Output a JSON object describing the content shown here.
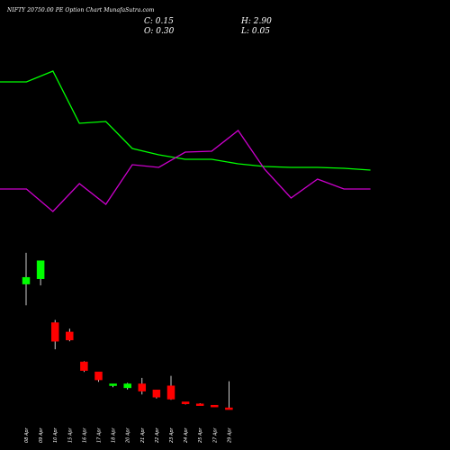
{
  "header": {
    "title": "NIFTY 20750.00  PE Option  Chart MunafaSutra.com",
    "close_label": "C:",
    "close_value": "0.15",
    "open_label": "O:",
    "open_value": "0.30",
    "high_label": "H:",
    "high_value": "2.90",
    "low_label": "L:",
    "low_value": "0.05"
  },
  "colors": {
    "background": "#000000",
    "up": "#00ff00",
    "down": "#ff0000",
    "line_green": "#00ff00",
    "line_magenta": "#cc00cc",
    "text": "#ffffff"
  },
  "chart_data": {
    "type": "candlestick",
    "categories": [
      "08 Apr",
      "09 Apr",
      "10 Apr",
      "15 Apr",
      "16 Apr",
      "17 Apr",
      "18 Apr",
      "20 Apr",
      "21 Apr",
      "22 Apr",
      "23 Apr",
      "24 Apr",
      "25 Apr",
      "27 Apr",
      "29 Apr"
    ],
    "ohlc": [
      {
        "date": "08 Apr",
        "open": 19.8,
        "high": 24.5,
        "low": 16.6,
        "close": 20.8
      },
      {
        "date": "09 Apr",
        "open": 20.6,
        "high": 23.3,
        "low": 19.6,
        "close": 23.3
      },
      {
        "date": "10 Apr",
        "open": 14.0,
        "high": 14.4,
        "low": 10.0,
        "close": 11.2
      },
      {
        "date": "15 Apr",
        "open": 12.6,
        "high": 13.1,
        "low": 11.2,
        "close": 11.4
      },
      {
        "date": "16 Apr",
        "open": 8.1,
        "high": 8.2,
        "low": 6.6,
        "close": 6.8
      },
      {
        "date": "17 Apr",
        "open": 6.6,
        "high": 6.6,
        "low": 5.1,
        "close": 5.4
      },
      {
        "date": "18 Apr",
        "open": 4.55,
        "high": 4.8,
        "low": 4.3,
        "close": 4.8
      },
      {
        "date": "20 Apr",
        "open": 4.2,
        "high": 4.95,
        "low": 3.95,
        "close": 4.8
      },
      {
        "date": "21 Apr",
        "open": 4.8,
        "high": 5.7,
        "low": 3.2,
        "close": 3.7
      },
      {
        "date": "22 Apr",
        "open": 3.9,
        "high": 3.9,
        "low": 2.6,
        "close": 2.8
      },
      {
        "date": "23 Apr",
        "open": 4.5,
        "high": 6.0,
        "low": 2.4,
        "close": 2.5
      },
      {
        "date": "24 Apr",
        "open": 2.1,
        "high": 2.1,
        "low": 1.7,
        "close": 1.8
      },
      {
        "date": "25 Apr",
        "open": 1.8,
        "high": 1.9,
        "low": 1.65,
        "close": 1.7
      },
      {
        "date": "27 Apr",
        "open": 1.6,
        "high": 1.6,
        "low": 1.5,
        "close": 1.5
      },
      {
        "date": "29 Apr",
        "open": 1.2,
        "high": 5.2,
        "low": 1.1,
        "close": 1.0
      }
    ],
    "price_range": [
      0,
      28
    ],
    "lines": [
      {
        "color": "#00ff00",
        "values": [
          91,
          91,
          79,
          137,
          135,
          165,
          172,
          177,
          177,
          182,
          185,
          186,
          186,
          187,
          189
        ]
      },
      {
        "color": "#cc00cc",
        "values": [
          210,
          210,
          235,
          204,
          227,
          183,
          186,
          169,
          168,
          145,
          188,
          220,
          199,
          210,
          210
        ]
      }
    ],
    "line_range": [
      300,
      0
    ]
  }
}
